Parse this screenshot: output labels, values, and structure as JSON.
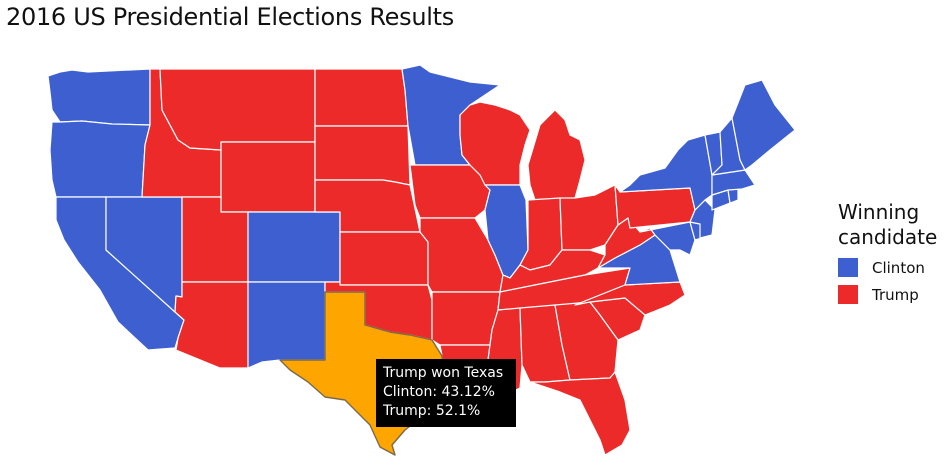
{
  "title": "2016 US Presidential Elections Results",
  "colors": {
    "clinton": "#3d5fd0",
    "trump": "#ec2a2a",
    "highlight": "#ffa500"
  },
  "legend": {
    "title_line1": "Winning",
    "title_line2": "candidate",
    "items": [
      {
        "label": "Clinton",
        "color": "#3d5fd0"
      },
      {
        "label": "Trump",
        "color": "#ec2a2a"
      }
    ]
  },
  "tooltip": {
    "line1": "Trump won Texas",
    "line2": "Clinton: 43.12%",
    "line3": "Trump: 52.1%"
  },
  "map_data": {
    "type": "choropleth",
    "highlighted_state": "Texas",
    "winners": {
      "Washington": "Clinton",
      "Oregon": "Clinton",
      "California": "Clinton",
      "Nevada": "Clinton",
      "Colorado": "Clinton",
      "New Mexico": "Clinton",
      "Minnesota": "Clinton",
      "Illinois": "Clinton",
      "Virginia": "Clinton",
      "New York": "Clinton",
      "Vermont": "Clinton",
      "New Hampshire": "Clinton",
      "Maine": "Clinton",
      "Massachusetts": "Clinton",
      "Rhode Island": "Clinton",
      "Connecticut": "Clinton",
      "New Jersey": "Clinton",
      "Delaware": "Clinton",
      "Maryland": "Clinton",
      "Idaho": "Trump",
      "Montana": "Trump",
      "Wyoming": "Trump",
      "Utah": "Trump",
      "Arizona": "Trump",
      "North Dakota": "Trump",
      "South Dakota": "Trump",
      "Nebraska": "Trump",
      "Kansas": "Trump",
      "Oklahoma": "Trump",
      "Texas": "Trump",
      "Iowa": "Trump",
      "Missouri": "Trump",
      "Arkansas": "Trump",
      "Louisiana": "Trump",
      "Wisconsin": "Trump",
      "Michigan": "Trump",
      "Indiana": "Trump",
      "Ohio": "Trump",
      "Kentucky": "Trump",
      "Tennessee": "Trump",
      "Mississippi": "Trump",
      "Alabama": "Trump",
      "Georgia": "Trump",
      "Florida": "Trump",
      "South Carolina": "Trump",
      "North Carolina": "Trump",
      "West Virginia": "Trump",
      "Pennsylvania": "Trump"
    }
  }
}
